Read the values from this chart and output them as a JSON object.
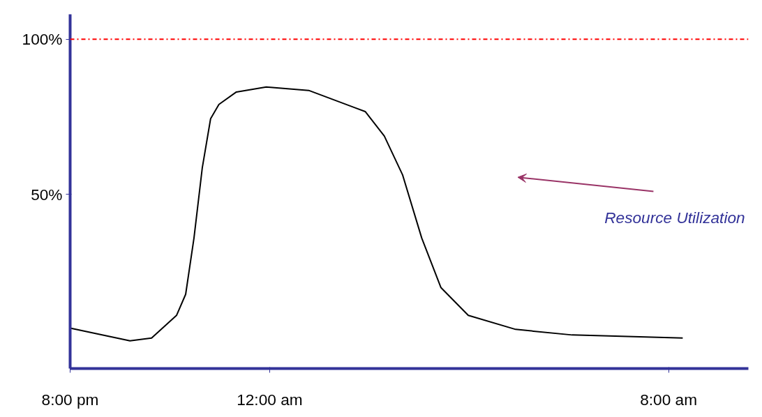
{
  "chart_data": {
    "type": "line",
    "x": [
      "2000-01-01T20:00",
      "2000-01-01T21:12",
      "2000-01-01T21:38",
      "2000-01-01T22:08",
      "2000-01-01T22:19",
      "2000-01-01T22:29",
      "2000-01-01T22:39",
      "2000-01-01T22:49",
      "2000-01-01T22:59",
      "2000-01-01T23:20",
      "2000-01-01T23:56",
      "2000-01-02T00:47",
      "2000-01-02T01:55",
      "2000-01-02T02:18",
      "2000-01-02T02:40",
      "2000-01-02T03:03",
      "2000-01-02T03:26",
      "2000-01-02T03:59",
      "2000-01-02T04:56",
      "2000-01-02T06:04",
      "2000-01-02T08:17"
    ],
    "series": [
      {
        "color": "#000000",
        "values": [
          7.0,
          2.9,
          3.8,
          11.1,
          17.9,
          36.0,
          58.6,
          74.4,
          79.0,
          83.0,
          84.6,
          83.5,
          76.7,
          68.8,
          56.3,
          36.0,
          20.1,
          11.1,
          6.6,
          4.8,
          3.8
        ]
      }
    ],
    "xlim": [
      "2000-01-01T20:00",
      "2000-01-02T09:36"
    ],
    "ylim": [
      -6,
      108
    ],
    "xticks": [
      {
        "value": "2000-01-01T20:00",
        "label": "8:00 pm"
      },
      {
        "value": "2000-01-02T00:00",
        "label": "12:00 am"
      },
      {
        "value": "2000-01-02T08:00",
        "label": "8:00 am"
      }
    ],
    "yticks": [
      {
        "value": 50,
        "label": "50%"
      },
      {
        "value": 100,
        "label": "100%"
      }
    ],
    "ref_lines": [
      {
        "axis": "y",
        "value": 100,
        "color": "#ff0000",
        "line_style": "dashdot"
      }
    ],
    "annotations": [
      "Resource Utilization"
    ],
    "grid": false,
    "marker": "none",
    "line_style": "solid"
  }
}
